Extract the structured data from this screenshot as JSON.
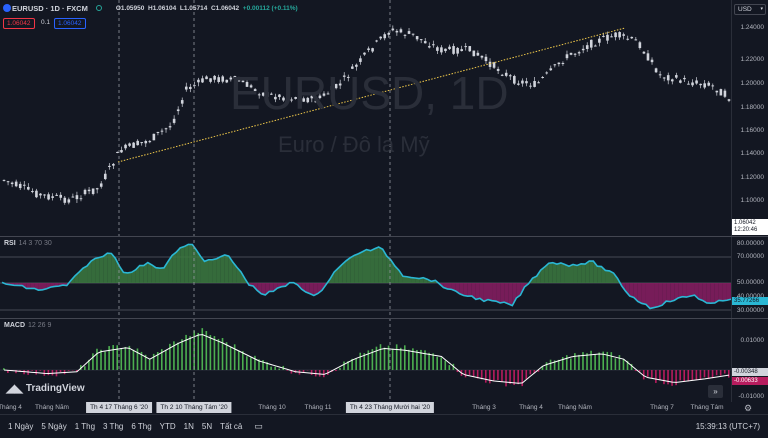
{
  "header": {
    "symbol": "EURUSD · 1D · FXCM",
    "open": "O1.05950",
    "high": "H1.06104",
    "low": "L1.05714",
    "close": "C1.06042",
    "change": "+0.00112 (+0.11%)",
    "sell_price": "1.06042",
    "spread": "0.1",
    "buy_price": "1.06042",
    "currency": "USD"
  },
  "watermark": {
    "symbol": "EURUSD, 1D",
    "description": "Euro / Đô la Mỹ"
  },
  "price_axis": {
    "ticks": [
      "1.24000",
      "1.22000",
      "1.20000",
      "1.18000",
      "1.16000",
      "1.14000",
      "1.12000",
      "1.10000",
      "1.08000"
    ],
    "last_price": "1.06042",
    "countdown": "12:20:46"
  },
  "rsi": {
    "title": "RSI",
    "params": "14 3 70 30",
    "ticks": [
      "80.00000",
      "70.00000",
      "50.00000",
      "40.00000",
      "30.00000"
    ],
    "current": "35.77266"
  },
  "macd": {
    "title": "MACD",
    "params": "12 26 9",
    "ticks": [
      "0.01000",
      "0.00000",
      "-0.01000"
    ],
    "value1": "-0.00348",
    "value2": "-0.00633"
  },
  "timeline": {
    "labels": [
      "Tháng 4",
      "Tháng Năm",
      "Tháng 10",
      "Tháng 11",
      "Tháng 3",
      "Tháng 4",
      "Tháng Năm",
      "Tháng 7",
      "Tháng Tám"
    ],
    "crosshair_1": "Th 4 17 Tháng 6 '20",
    "crosshair_2": "Th 2 10 Tháng Tám '20",
    "crosshair_3": "Th 4 23 Tháng Mười hai '20"
  },
  "branding": {
    "logo_text": "TradingView"
  },
  "bottombar": {
    "ranges": [
      "1 Ngày",
      "5 Ngày",
      "1 Thg",
      "3 Thg",
      "6 Thg",
      "YTD",
      "1N",
      "5N",
      "Tất cả"
    ],
    "time": "15:39:13 (UTC+7)"
  },
  "colors": {
    "background": "#131722",
    "candle": "#d1d4dc",
    "trendline": "#f0c94a",
    "rsi_line": "#2ab7d4",
    "rsi_fill_up": "#3c7a3f",
    "rsi_fill_down": "#8a1d63",
    "macd_pos": "#4caf50",
    "macd_neg": "#b71c5e",
    "sell_badge": "#f23645",
    "buy_badge": "#2962ff"
  }
}
